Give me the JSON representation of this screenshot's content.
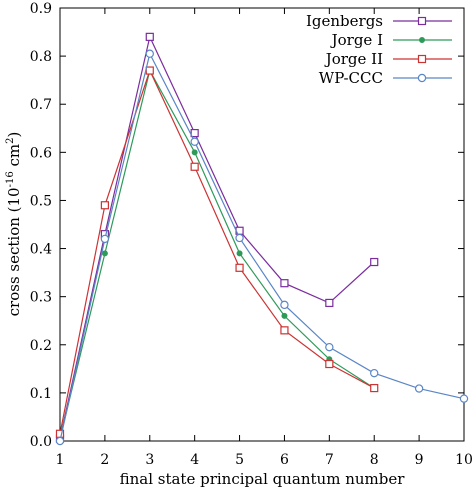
{
  "chart_data": {
    "type": "line",
    "xlabel": "final state principal quantum number",
    "ylabel": "cross section (10",
    "ylabel_sup1": "-16",
    "ylabel_mid": " cm",
    "ylabel_sup2": "2",
    "ylabel_end": ")",
    "xlim": [
      1,
      10
    ],
    "ylim": [
      0,
      0.9
    ],
    "x_ticks": [
      "1",
      "2",
      "3",
      "4",
      "5",
      "6",
      "7",
      "8",
      "9",
      "10"
    ],
    "y_ticks": [
      "0.0",
      "0.1",
      "0.2",
      "0.3",
      "0.4",
      "0.5",
      "0.6",
      "0.7",
      "0.8",
      "0.9"
    ],
    "grid": false,
    "legend_position": "top-right",
    "series": [
      {
        "name": "Igenbergs",
        "color": "#7b2d9e",
        "marker": "square-open",
        "x": [
          1,
          2,
          3,
          4,
          5,
          6,
          7,
          8
        ],
        "y": [
          0.005,
          0.43,
          0.84,
          0.64,
          0.437,
          0.328,
          0.287,
          0.372
        ]
      },
      {
        "name": "Jorge I",
        "color": "#2e9a5a",
        "marker": "circle-filled",
        "x": [
          1,
          2,
          3,
          4,
          5,
          6,
          7,
          8
        ],
        "y": [
          0.005,
          0.39,
          0.77,
          0.6,
          0.39,
          0.26,
          0.17,
          0.11
        ]
      },
      {
        "name": "Jorge II",
        "color": "#cc3333",
        "marker": "square-open",
        "x": [
          1,
          2,
          3,
          4,
          5,
          6,
          7,
          8
        ],
        "y": [
          0.015,
          0.49,
          0.77,
          0.57,
          0.36,
          0.23,
          0.16,
          0.11
        ]
      },
      {
        "name": "WP-CCC",
        "color": "#5a86c6",
        "marker": "circle-open",
        "x": [
          1,
          2,
          3,
          4,
          5,
          6,
          7,
          8,
          9,
          10
        ],
        "y": [
          0.0,
          0.42,
          0.805,
          0.622,
          0.422,
          0.283,
          0.195,
          0.141,
          0.109,
          0.088
        ]
      }
    ]
  }
}
